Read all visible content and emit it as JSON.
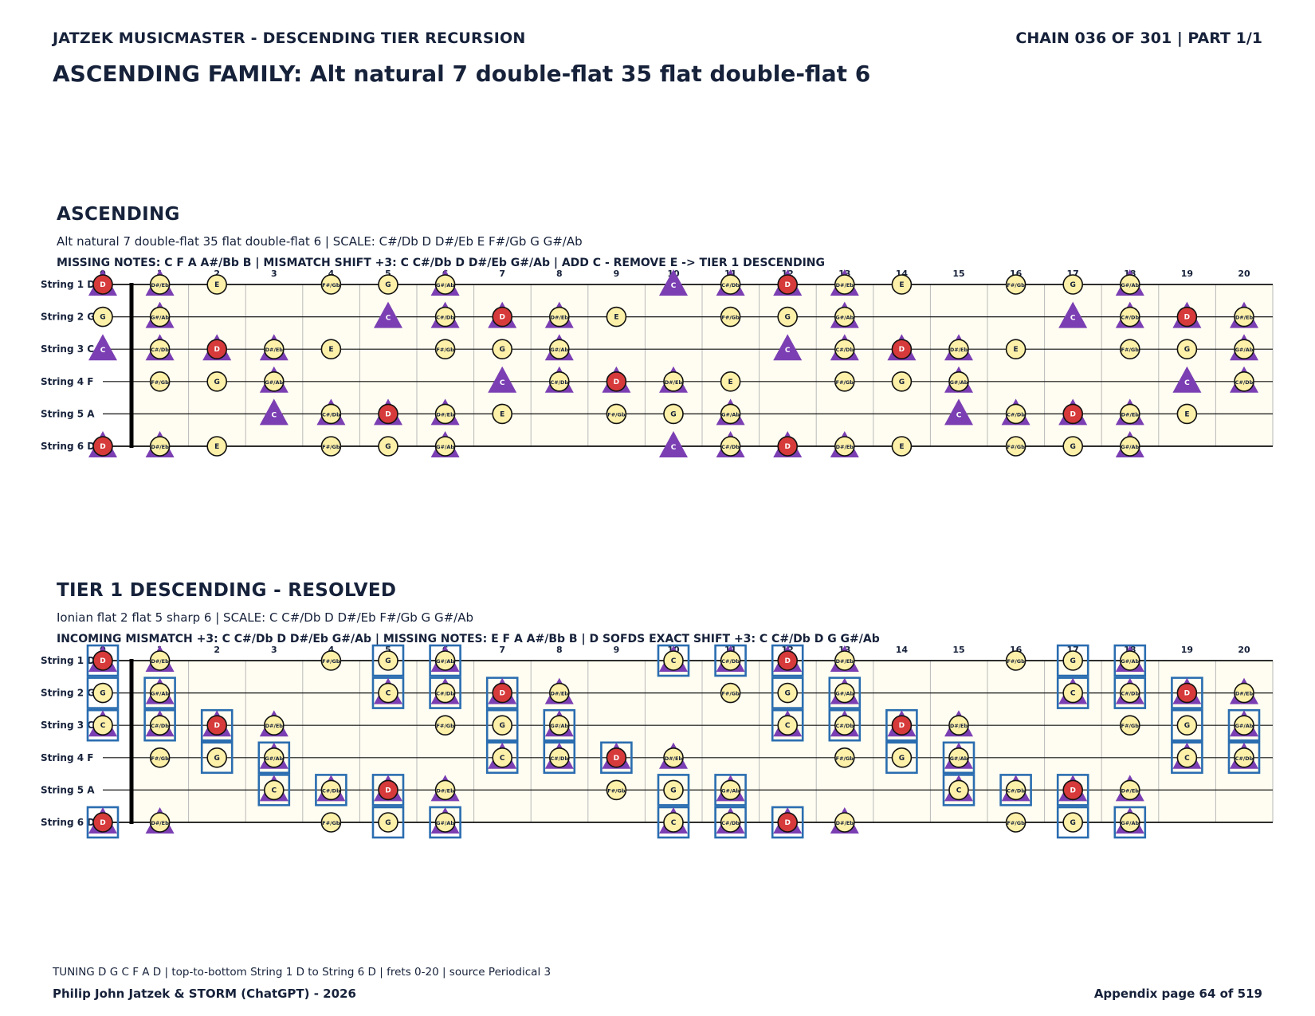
{
  "header": {
    "series": "JATZEK MUSICMASTER - DESCENDING TIER RECURSION",
    "chain": "CHAIN 036 OF 301  |  PART 1/1",
    "title": "ASCENDING FAMILY: Alt natural 7 double-flat 35 flat double-flat 6"
  },
  "frets": [
    "0",
    "1",
    "2",
    "3",
    "4",
    "5",
    "6",
    "7",
    "8",
    "9",
    "10",
    "11",
    "12",
    "13",
    "14",
    "15",
    "16",
    "17",
    "18",
    "19",
    "20"
  ],
  "strings": [
    {
      "label": "String 1 D",
      "tuning": "D"
    },
    {
      "label": "String 2 G",
      "tuning": "G"
    },
    {
      "label": "String 3 C",
      "tuning": "C"
    },
    {
      "label": "String 4 F",
      "tuning": "F"
    },
    {
      "label": "String 5 A",
      "tuning": "A"
    },
    {
      "label": "String 6 D",
      "tuning": "D"
    }
  ],
  "chromatic": [
    "C",
    "C#/Db",
    "D",
    "D#/Eb",
    "E",
    "F",
    "F#/Gb",
    "G",
    "G#/Ab",
    "A",
    "A#/Bb",
    "B"
  ],
  "colors": {
    "note_fill": "#fdf0a8",
    "root_fill": "#d63a3a",
    "triangle": "#7b3fb3",
    "box": "#2a6db0",
    "board": "#fffdf1"
  },
  "sections": [
    {
      "id": "ascending",
      "title": "ASCENDING",
      "subtitle": "Alt natural 7 double-flat 35 flat double-flat 6  |  SCALE: C#/Db D D#/Eb E F#/Gb G G#/Ab",
      "notes_line": "MISSING NOTES: C F A A#/Bb B  |  MISMATCH SHIFT +3: C C#/Db D D#/Eb G#/Ab  |  ADD C - REMOVE E -> TIER 1 DESCENDING",
      "scale": [
        "C#/Db",
        "D",
        "D#/Eb",
        "E",
        "F#/Gb",
        "G",
        "G#/Ab"
      ],
      "root": "D",
      "triangle_notes": [
        "C",
        "C#/Db",
        "D",
        "D#/Eb",
        "G#/Ab"
      ],
      "triangle_only": [
        "C"
      ],
      "boxed_notes": []
    },
    {
      "id": "tier1",
      "title": "TIER 1 DESCENDING - RESOLVED",
      "subtitle": "Ionian flat 2 flat 5 sharp 6  |  SCALE: C C#/Db D D#/Eb F#/Gb G G#/Ab",
      "notes_line": "INCOMING MISMATCH +3: C C#/Db D D#/Eb G#/Ab  |  MISSING NOTES: E F A A#/Bb B  |  D SOFDS EXACT SHIFT +3: C C#/Db D G G#/Ab",
      "scale": [
        "C",
        "C#/Db",
        "D",
        "D#/Eb",
        "F#/Gb",
        "G",
        "G#/Ab"
      ],
      "root": "D",
      "triangle_notes": [
        "C",
        "C#/Db",
        "D",
        "D#/Eb",
        "G#/Ab"
      ],
      "triangle_only": [],
      "boxed_notes": [
        "C",
        "C#/Db",
        "D",
        "G",
        "G#/Ab"
      ]
    }
  ],
  "footer": {
    "tuning": "TUNING D G C F A D | top-to-bottom String 1 D to String 6 D | frets 0-20 | source Periodical 3",
    "author": "Philip John Jatzek & STORM (ChatGPT) - 2026",
    "page": "Appendix page 64 of 519"
  }
}
